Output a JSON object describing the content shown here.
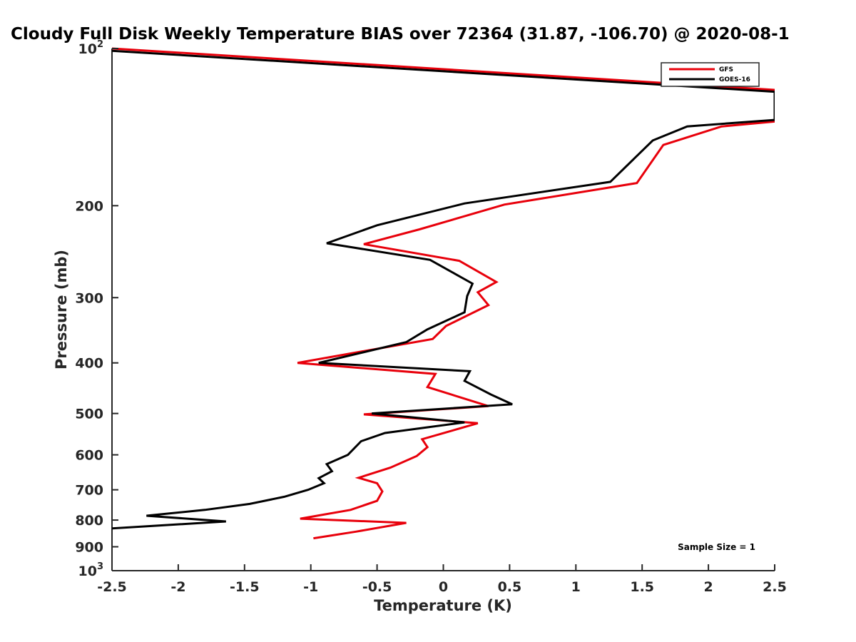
{
  "chart_data": {
    "type": "line",
    "title": "Cloudy Full Disk Weekly Temperature BIAS over 72364 (31.87, -106.70) @ 2020-08-1",
    "xlabel": "Temperature (K)",
    "ylabel": "Pressure (mb)",
    "xlim": [
      -2.5,
      2.5
    ],
    "ylim": [
      100,
      1000
    ],
    "y_scale": "log",
    "y_reversed": true,
    "grid": false,
    "legend_position": "top-right",
    "x_ticks": [
      {
        "value": -2.5,
        "label": "-2.5"
      },
      {
        "value": -2,
        "label": "-2"
      },
      {
        "value": -1.5,
        "label": "-1.5"
      },
      {
        "value": -1,
        "label": "-1"
      },
      {
        "value": -0.5,
        "label": "-0.5"
      },
      {
        "value": 0,
        "label": "0"
      },
      {
        "value": 0.5,
        "label": "0.5"
      },
      {
        "value": 1,
        "label": "1"
      },
      {
        "value": 1.5,
        "label": "1.5"
      },
      {
        "value": 2,
        "label": "2"
      },
      {
        "value": 2.5,
        "label": "2.5"
      }
    ],
    "y_ticks": [
      {
        "value": 100,
        "base": "10",
        "exp": "2"
      },
      {
        "value": 200,
        "label": "200"
      },
      {
        "value": 300,
        "label": "300"
      },
      {
        "value": 400,
        "label": "400"
      },
      {
        "value": 500,
        "label": "500"
      },
      {
        "value": 600,
        "label": "600"
      },
      {
        "value": 700,
        "label": "700"
      },
      {
        "value": 800,
        "label": "800"
      },
      {
        "value": 900,
        "label": "900"
      },
      {
        "value": 1000,
        "base": "10",
        "exp": "3"
      }
    ],
    "annotation": "Sample Size = 1",
    "series": [
      {
        "name": "GFS",
        "color": "#e8000b",
        "points": [
          [
            -2.5,
            100
          ],
          [
            2.5,
            120
          ],
          [
            2.5,
            138
          ],
          [
            2.1,
            141
          ],
          [
            1.66,
            153
          ],
          [
            1.46,
            181
          ],
          [
            0.46,
            199
          ],
          [
            -0.18,
            222
          ],
          [
            -0.6,
            237
          ],
          [
            0.12,
            255
          ],
          [
            0.4,
            280
          ],
          [
            0.26,
            293
          ],
          [
            0.34,
            310
          ],
          [
            0.02,
            340
          ],
          [
            -0.08,
            360
          ],
          [
            -1.1,
            400
          ],
          [
            -0.06,
            420
          ],
          [
            -0.12,
            445
          ],
          [
            0.34,
            484
          ],
          [
            -0.6,
            502
          ],
          [
            0.26,
            522
          ],
          [
            -0.16,
            560
          ],
          [
            -0.12,
            580
          ],
          [
            -0.2,
            603
          ],
          [
            -0.4,
            635
          ],
          [
            -0.64,
            664
          ],
          [
            -0.5,
            680
          ],
          [
            -0.46,
            705
          ],
          [
            -0.5,
            735
          ],
          [
            -0.7,
            765
          ],
          [
            -1.08,
            795
          ],
          [
            -0.28,
            810
          ],
          [
            -0.66,
            842
          ],
          [
            -0.98,
            867
          ]
        ]
      },
      {
        "name": "GOES-16",
        "color": "#000000",
        "points": [
          [
            -2.5,
            101
          ],
          [
            2.5,
            121
          ],
          [
            2.5,
            137
          ],
          [
            1.84,
            141
          ],
          [
            1.58,
            150
          ],
          [
            1.26,
            180
          ],
          [
            0.16,
            198
          ],
          [
            -0.5,
            218
          ],
          [
            -0.88,
            236
          ],
          [
            -0.1,
            254
          ],
          [
            0.22,
            282
          ],
          [
            0.18,
            298
          ],
          [
            0.16,
            320
          ],
          [
            -0.12,
            345
          ],
          [
            -0.28,
            365
          ],
          [
            -0.94,
            400
          ],
          [
            0.2,
            415
          ],
          [
            0.16,
            433
          ],
          [
            0.36,
            460
          ],
          [
            0.52,
            480
          ],
          [
            -0.54,
            500
          ],
          [
            0.16,
            520
          ],
          [
            -0.44,
            545
          ],
          [
            -0.62,
            565
          ],
          [
            -0.72,
            600
          ],
          [
            -0.88,
            625
          ],
          [
            -0.84,
            645
          ],
          [
            -0.94,
            665
          ],
          [
            -0.9,
            680
          ],
          [
            -1.02,
            700
          ],
          [
            -1.2,
            722
          ],
          [
            -1.46,
            745
          ],
          [
            -1.8,
            765
          ],
          [
            -2.24,
            785
          ],
          [
            -1.64,
            805
          ],
          [
            -2.5,
            830
          ]
        ]
      }
    ]
  }
}
